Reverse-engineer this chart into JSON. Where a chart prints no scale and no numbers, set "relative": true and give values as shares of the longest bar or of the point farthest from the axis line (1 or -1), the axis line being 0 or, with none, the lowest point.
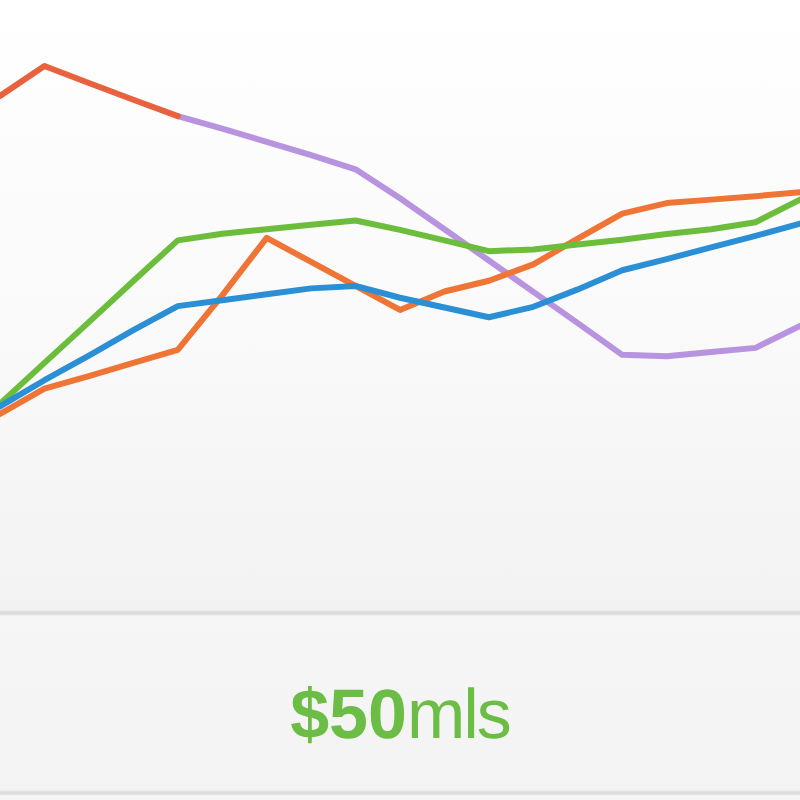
{
  "chart_data": {
    "type": "line",
    "relative": true,
    "marker": "none",
    "categories": [
      null,
      null,
      null,
      null,
      null,
      null,
      null,
      null,
      null,
      null,
      null,
      null,
      null,
      null,
      null,
      null,
      null,
      null,
      null
    ],
    "series": [
      {
        "color": "#2b8fd6",
        "values": [
          0.022,
          0.097,
          0.168,
          0.241,
          0.31,
          0.327,
          0.344,
          0.361,
          0.368,
          0.334,
          0.306,
          0.278,
          0.308,
          0.358,
          0.413,
          0.445,
          0.479,
          0.512,
          0.547
        ]
      },
      {
        "color": "#6cbd3c",
        "values": [
          0.029,
          0.147,
          0.264,
          0.382,
          0.499,
          0.518,
          0.531,
          0.544,
          0.556,
          0.529,
          0.499,
          0.468,
          0.473,
          0.487,
          0.501,
          0.517,
          0.531,
          0.551,
          0.616
        ]
      },
      {
        "color": "#ee7535",
        "values": [
          0,
          0.073,
          0.109,
          0.147,
          0.184,
          0.341,
          0.506,
          0.437,
          0.368,
          0.299,
          0.352,
          0.383,
          0.43,
          0.504,
          0.576,
          0.606,
          0.616,
          0.626,
          0.637
        ]
      },
      {
        "color": "#e8633d",
        "values": [
          0.914,
          1,
          0.951,
          0.903,
          0.856,
          null,
          null,
          null,
          null,
          null,
          null,
          null,
          null,
          null,
          null,
          null,
          null,
          null,
          null
        ]
      },
      {
        "color": "#b893e0",
        "values": [
          null,
          null,
          null,
          null,
          0.856,
          0.82,
          0.782,
          0.744,
          0.703,
          0.62,
          0.531,
          0.441,
          0.351,
          0.261,
          0.17,
          0.166,
          0.178,
          0.19,
          0.253
        ]
      }
    ],
    "annotations": [
      "$50mls"
    ]
  }
}
